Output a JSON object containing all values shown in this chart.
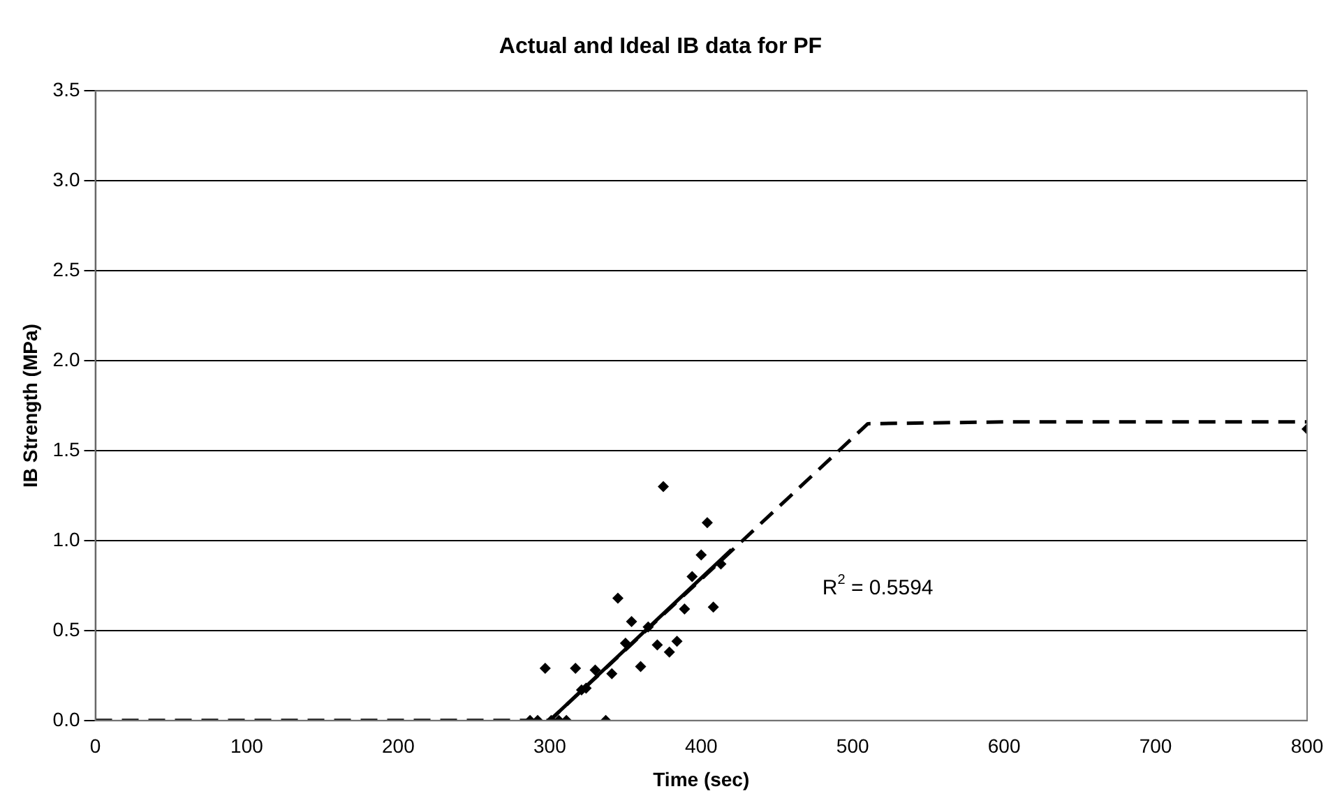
{
  "chart_data": {
    "type": "scatter",
    "title": "Actual and Ideal IB data for PF",
    "xlabel": "Time (sec)",
    "ylabel": "IB Strength (MPa)",
    "xlim": [
      0,
      800
    ],
    "xticks": [
      0,
      100,
      200,
      300,
      400,
      500,
      600,
      700,
      800
    ],
    "ylim": [
      0,
      3.5
    ],
    "yticks": [
      {
        "value": 0,
        "label": "0.0"
      },
      {
        "value": 0.5,
        "label": "0.5"
      },
      {
        "value": 1,
        "label": "1.0"
      },
      {
        "value": 1.5,
        "label": "1.5"
      },
      {
        "value": 2,
        "label": "2.0"
      },
      {
        "value": 2.5,
        "label": "2.5"
      },
      {
        "value": 3,
        "label": "3.0"
      },
      {
        "value": 3.5,
        "label": "3.5"
      }
    ],
    "grid": "y",
    "legend": false,
    "marker": "diamond",
    "series": [
      {
        "type": "line",
        "color": "#000000",
        "line_style": "dashed",
        "marker": "none",
        "x": [
          0,
          300,
          510,
          600,
          800
        ],
        "values": [
          0,
          0,
          1.65,
          1.66,
          1.66
        ]
      },
      {
        "type": "line",
        "color": "#000000",
        "line_style": "solid",
        "marker": "none",
        "x": [
          300,
          420
        ],
        "values": [
          0,
          0.95
        ]
      },
      {
        "type": "scatter",
        "color": "#000000",
        "x": [
          287,
          292,
          301,
          306,
          311,
          337,
          297,
          317,
          321,
          324,
          330,
          341,
          345,
          350,
          354,
          360,
          365,
          371,
          375,
          379,
          384,
          389,
          394,
          400,
          404,
          408,
          413,
          800
        ],
        "values": [
          0,
          0,
          0,
          0,
          0,
          0,
          0.29,
          0.29,
          0.17,
          0.18,
          0.28,
          0.26,
          0.68,
          0.43,
          0.55,
          0.3,
          0.52,
          0.42,
          1.3,
          0.38,
          0.44,
          0.62,
          0.8,
          0.92,
          1.1,
          0.63,
          0.87,
          1.62
        ]
      }
    ],
    "annotations": [
      "R$^{2}$ = 0.5594"
    ]
  }
}
